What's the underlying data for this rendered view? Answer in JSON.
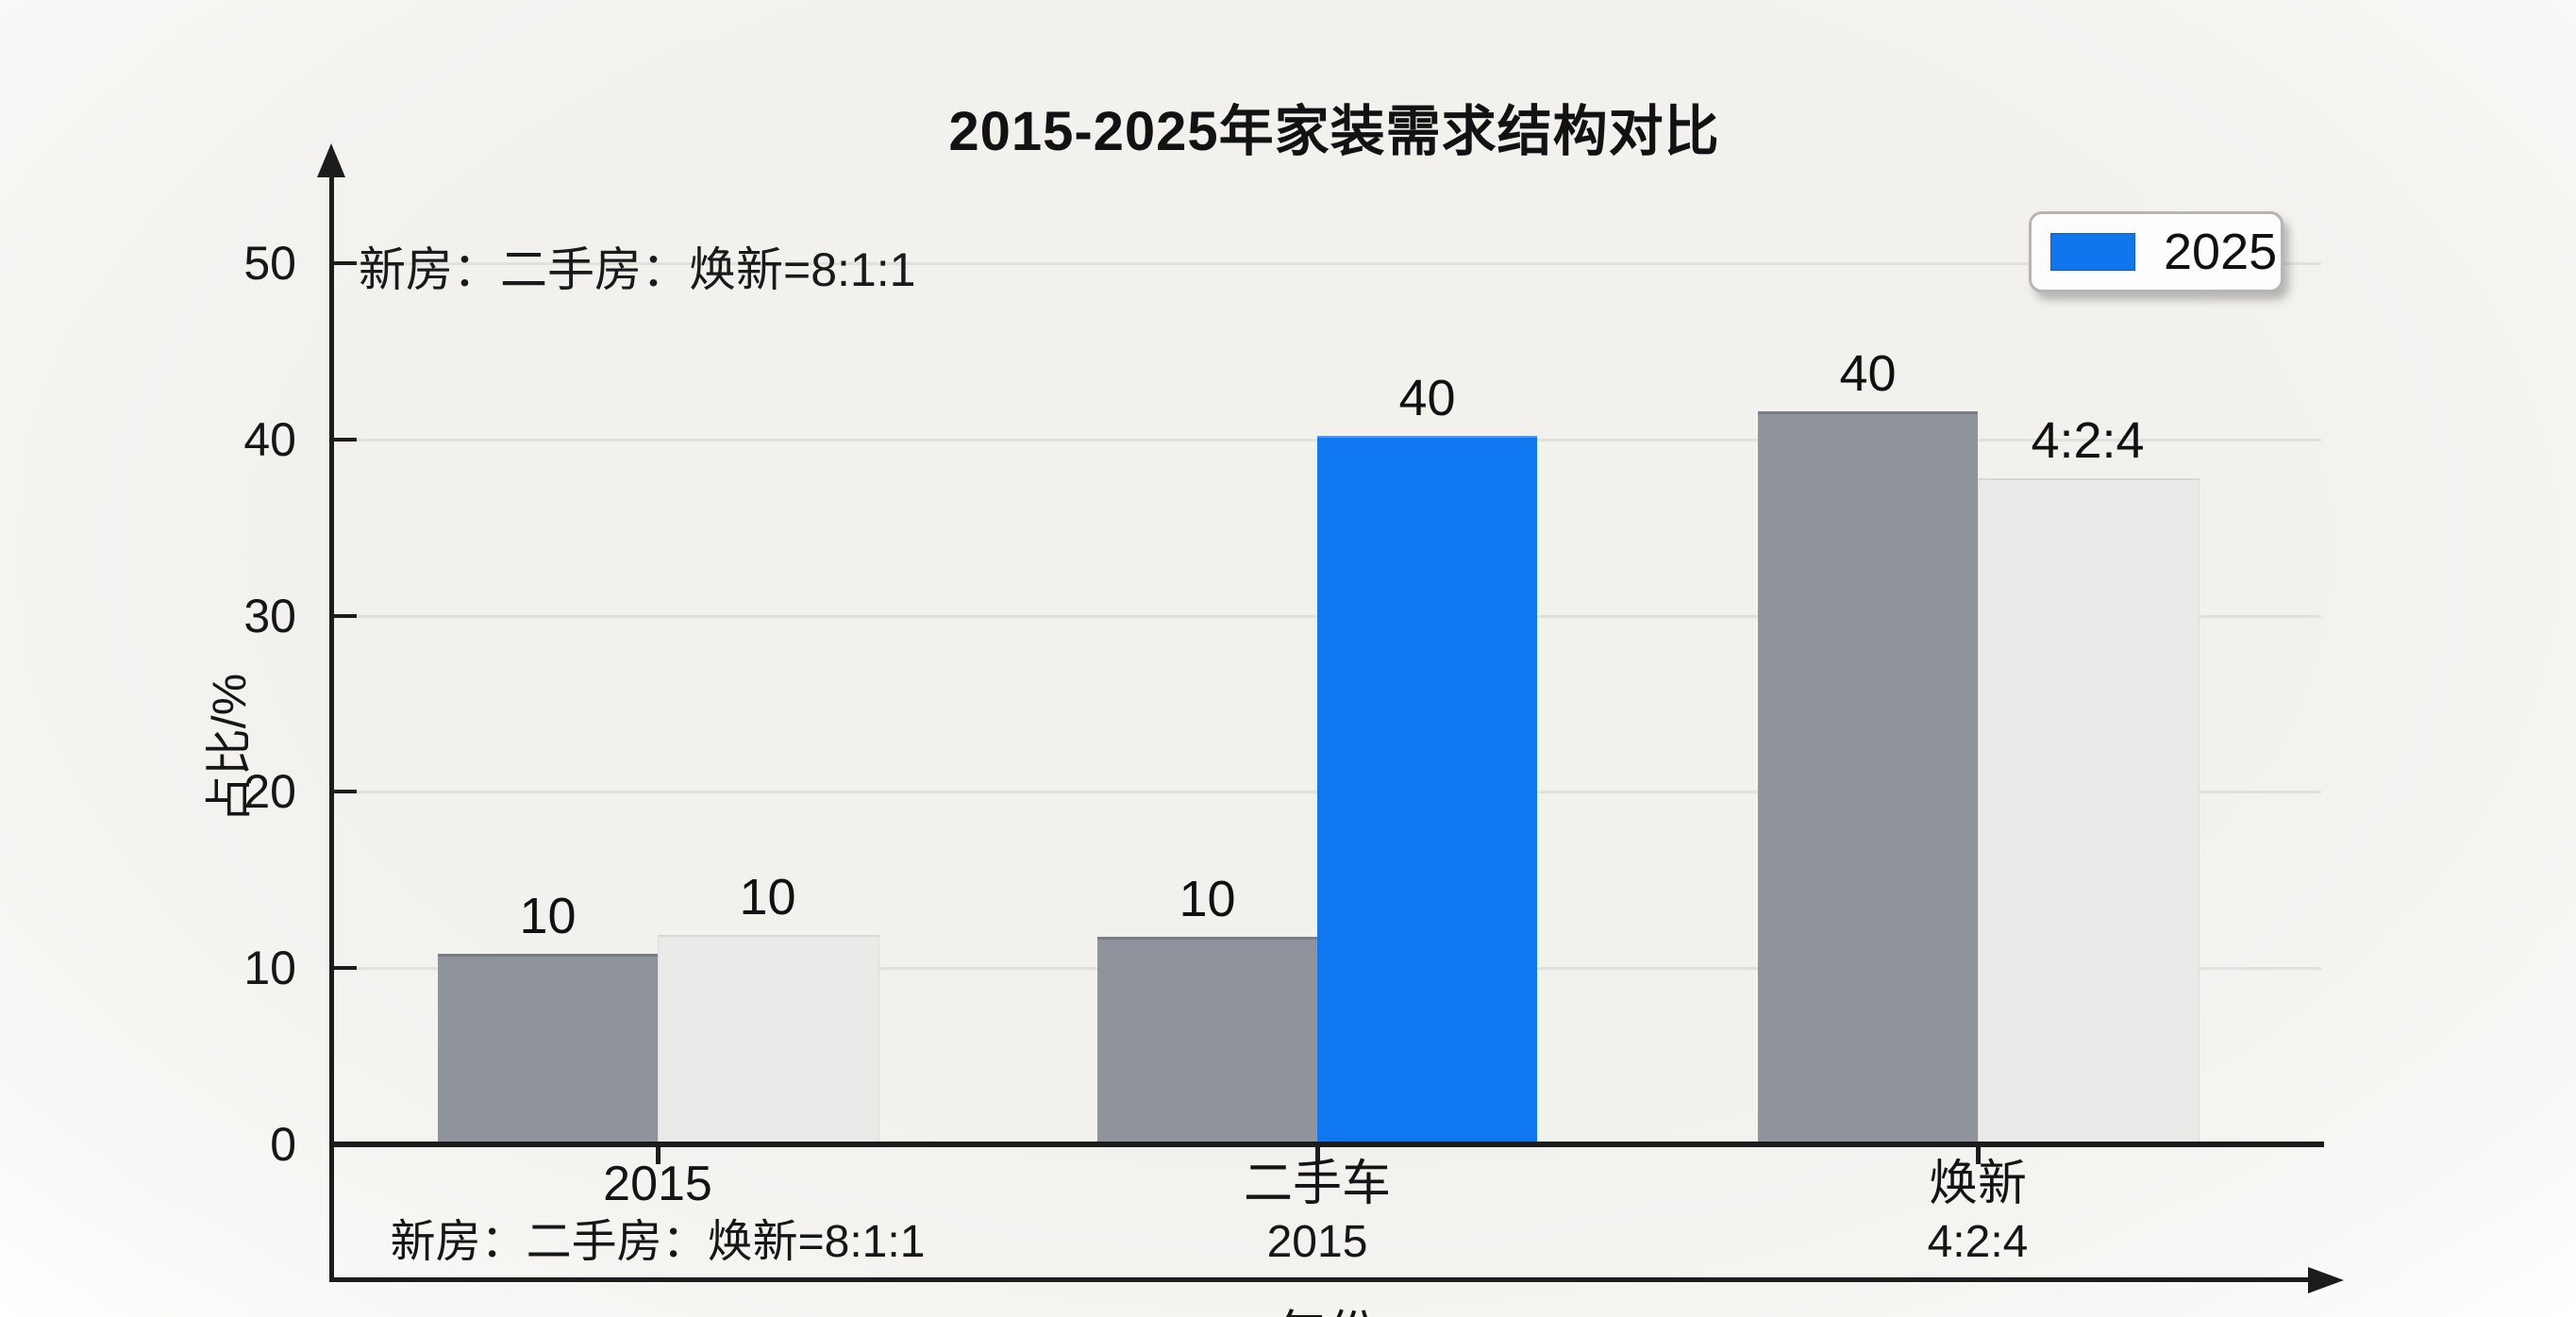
{
  "title": "2015-2025年家装需求结构对比",
  "annotation_topleft": "新房：二手房：焕新=8:1:1",
  "legend": {
    "position": "top-right",
    "items": [
      {
        "label": "2025",
        "color": "#1176ee"
      }
    ]
  },
  "colors": {
    "gray_bar": "#8f939b",
    "light_bar": "#ebeae8",
    "blue_bar": "#0f78f0",
    "grid": "#e2e0dc",
    "axis": "#1c1c1c",
    "background": "#f2f1ee"
  },
  "chart_data": {
    "type": "bar",
    "title": "2015-2025年家装需求结构对比",
    "xlabel": "年份",
    "ylabel": "占比/%",
    "ylim": [
      0,
      56
    ],
    "yticks": [
      0,
      10,
      20,
      30,
      40,
      50
    ],
    "grid": "horizontal",
    "legend_position": "top-right",
    "categories": [
      "2015",
      "二手车",
      "焕新"
    ],
    "category_sublabels": [
      "新房：二手房：焕新=8:1:1",
      "2015",
      "4:2:4"
    ],
    "groups": [
      {
        "category": "2015",
        "sublabel": "新房：二手房：焕新=8:1:1",
        "bars": [
          {
            "value_label": "10",
            "drawn_value": 10.8,
            "color_key": "gray"
          },
          {
            "value_label": "10",
            "drawn_value": 11.9,
            "color_key": "light"
          }
        ]
      },
      {
        "category": "二手车",
        "sublabel": "2015",
        "bars": [
          {
            "value_label": "10",
            "drawn_value": 11.8,
            "color_key": "gray"
          },
          {
            "value_label": "40",
            "drawn_value": 40.2,
            "color_key": "blue"
          }
        ]
      },
      {
        "category": "焕新",
        "sublabel": "4:2:4",
        "bars": [
          {
            "value_label": "40",
            "drawn_value": 41.6,
            "color_key": "gray"
          },
          {
            "value_label": "4:2:4",
            "drawn_value": 37.8,
            "color_key": "light"
          }
        ]
      }
    ]
  }
}
